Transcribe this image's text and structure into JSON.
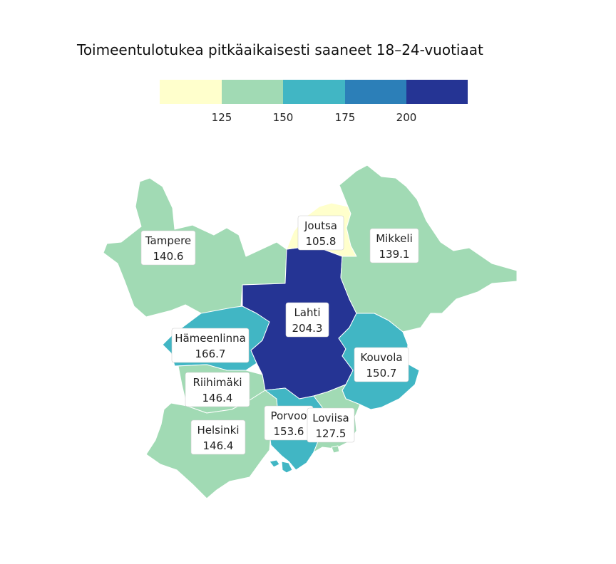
{
  "title": "Toimeentulotukea pitkäaikaisesti saaneet 18–24-vuotiaat",
  "legend": {
    "colors": [
      "#ffffcc",
      "#a1dab4",
      "#41b6c4",
      "#2c7fb8",
      "#253494"
    ],
    "breaks": [
      "125",
      "150",
      "175",
      "200"
    ]
  },
  "regions": [
    {
      "name": "Tampere",
      "value": "140.6",
      "color": "#a1dab4"
    },
    {
      "name": "Joutsa",
      "value": "105.8",
      "color": "#ffffcc"
    },
    {
      "name": "Mikkeli",
      "value": "139.1",
      "color": "#a1dab4"
    },
    {
      "name": "Lahti",
      "value": "204.3",
      "color": "#253494"
    },
    {
      "name": "Hämeenlinna",
      "value": "166.7",
      "color": "#41b6c4"
    },
    {
      "name": "Kouvola",
      "value": "150.7",
      "color": "#41b6c4"
    },
    {
      "name": "Riihimäki",
      "value": "146.4",
      "color": "#a1dab4"
    },
    {
      "name": "Helsinki",
      "value": "146.4",
      "color": "#a1dab4"
    },
    {
      "name": "Porvoo",
      "value": "153.6",
      "color": "#41b6c4"
    },
    {
      "name": "Loviisa",
      "value": "127.5",
      "color": "#a1dab4"
    }
  ]
}
